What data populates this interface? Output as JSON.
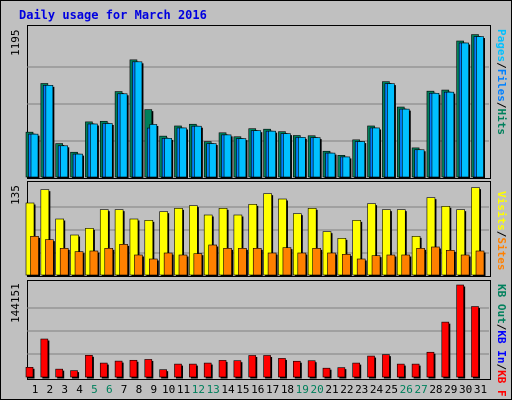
{
  "colors": {
    "background": "#c0c0c0",
    "hits": "#00805c",
    "files": "#0080ff",
    "pages": "#00c0ff",
    "visits": "#ffff00",
    "sites": "#ff8000",
    "kb_in": "#0000ff",
    "kb_out": "#00805c",
    "kb_f": "#ff0000",
    "title": "#0000e0",
    "weekend_label": "#00805c"
  },
  "chart_data": [
    {
      "type": "bar",
      "title": "Daily usage for March 2016",
      "y_max_label": "1195",
      "ylim": [
        0,
        1195
      ],
      "legend": [
        "Pages",
        "Files",
        "Hits"
      ],
      "legend_placement": "right",
      "categories": [
        "1",
        "2",
        "3",
        "4",
        "5",
        "6",
        "7",
        "8",
        "9",
        "10",
        "11",
        "12",
        "13",
        "14",
        "15",
        "16",
        "17",
        "18",
        "19",
        "20",
        "21",
        "22",
        "23",
        "24",
        "25",
        "26",
        "27",
        "28",
        "29",
        "30",
        "31"
      ],
      "weekend_days": [
        "5",
        "6",
        "12",
        "13",
        "19",
        "20",
        "26",
        "27"
      ],
      "series": [
        {
          "name": "Hits",
          "values": [
            362,
            755,
            270,
            200,
            445,
            450,
            690,
            946,
            544,
            330,
            412,
            426,
            285,
            357,
            325,
            390,
            386,
            366,
            335,
            333,
            208,
            175,
            300,
            412,
            770,
            565,
            235,
            693,
            702,
            1098,
            1150
          ]
        },
        {
          "name": "Files",
          "values": [
            346,
            740,
            252,
            185,
            428,
            432,
            672,
            930,
            395,
            312,
            396,
            410,
            270,
            340,
            310,
            374,
            370,
            350,
            320,
            318,
            193,
            162,
            286,
            396,
            754,
            548,
            220,
            676,
            685,
            1082,
            1134
          ]
        },
        {
          "name": "Pages",
          "values": [
            346,
            740,
            252,
            185,
            428,
            432,
            672,
            930,
            424,
            312,
            396,
            410,
            270,
            340,
            310,
            374,
            370,
            350,
            320,
            318,
            193,
            162,
            286,
            396,
            754,
            548,
            220,
            676,
            685,
            1082,
            1134
          ]
        }
      ]
    },
    {
      "type": "bar",
      "y_max_label": "135",
      "ylim": [
        0,
        135
      ],
      "legend": [
        "Visits",
        "Sites"
      ],
      "legend_placement": "right",
      "categories": [
        "1",
        "2",
        "3",
        "4",
        "5",
        "6",
        "7",
        "8",
        "9",
        "10",
        "11",
        "12",
        "13",
        "14",
        "15",
        "16",
        "17",
        "18",
        "19",
        "20",
        "21",
        "22",
        "23",
        "24",
        "25",
        "26",
        "27",
        "28",
        "29",
        "30",
        "31"
      ],
      "series": [
        {
          "name": "Visits",
          "values": [
            108,
            128,
            84,
            60,
            70,
            98,
            98,
            84,
            82,
            95,
            100,
            104,
            90,
            100,
            90,
            106,
            122,
            114,
            92,
            100,
            65,
            55,
            82,
            107,
            98,
            98,
            58,
            116,
            103,
            98,
            131
          ]
        },
        {
          "name": "Sites",
          "values": [
            58,
            53,
            40,
            35,
            36,
            40,
            46,
            30,
            24,
            33,
            30,
            32,
            45,
            40,
            40,
            40,
            33,
            41,
            33,
            40,
            33,
            31,
            24,
            29,
            30,
            30,
            40,
            42,
            37,
            30,
            36
          ]
        }
      ]
    },
    {
      "type": "bar",
      "y_max_label": "144151",
      "ylim": [
        0,
        144151
      ],
      "legend": [
        "KB F",
        "KB In",
        "KB Out"
      ],
      "legend_placement": "right",
      "categories": [
        "1",
        "2",
        "3",
        "4",
        "5",
        "6",
        "7",
        "8",
        "9",
        "10",
        "11",
        "12",
        "13",
        "14",
        "15",
        "16",
        "17",
        "18",
        "19",
        "20",
        "21",
        "22",
        "23",
        "24",
        "25",
        "26",
        "27",
        "28",
        "29",
        "30",
        "31"
      ],
      "series": [
        {
          "name": "KB F",
          "values": [
            15200,
            59500,
            12300,
            10000,
            34000,
            21800,
            24900,
            26200,
            27500,
            11500,
            20200,
            20200,
            21800,
            26000,
            25600,
            33700,
            33700,
            29100,
            24700,
            25500,
            13800,
            14700,
            21800,
            32800,
            35000,
            20200,
            20200,
            38800,
            86000,
            144151,
            110400
          ]
        }
      ]
    }
  ]
}
